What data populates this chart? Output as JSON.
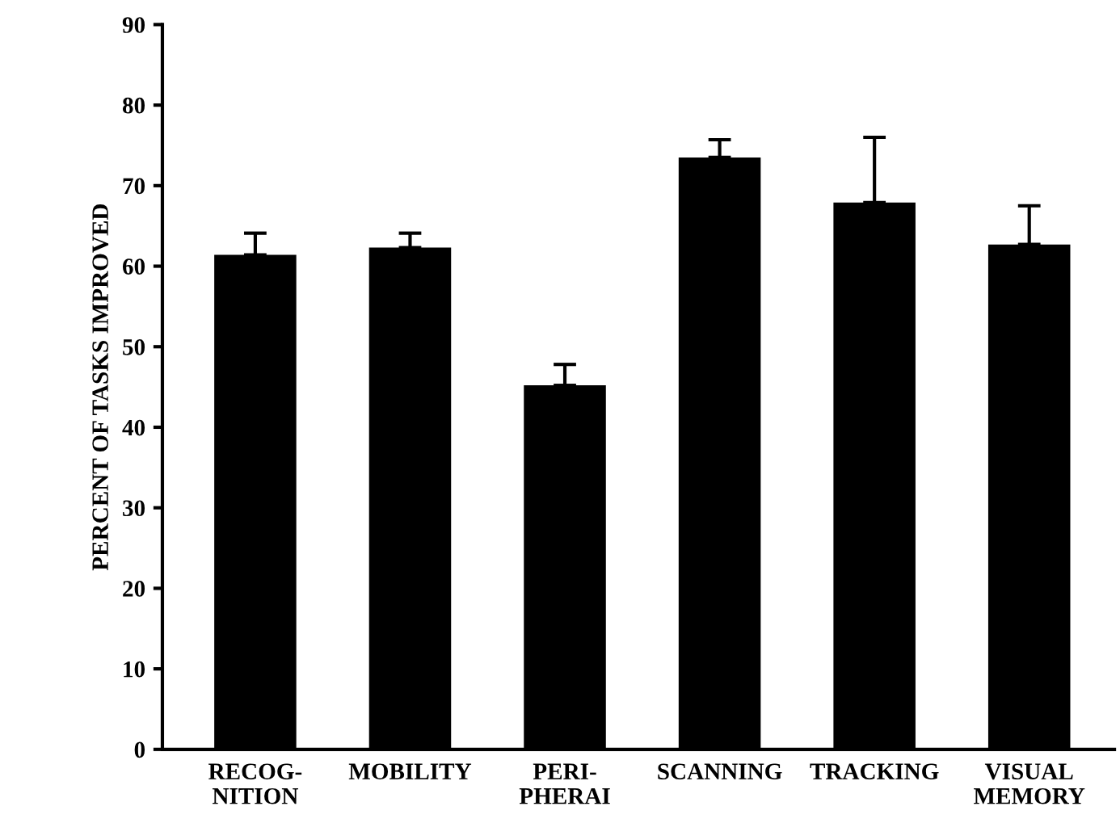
{
  "chart_data": {
    "type": "bar",
    "ylabel": "PERCENT OF TASKS IMPROVED",
    "categories": [
      "RECOG-\nNITION",
      "MOBILITY",
      "PERI-\nPHERAI",
      "SCANNING",
      "TRACKING",
      "VISUAL\nMEMORY"
    ],
    "values": [
      61.4,
      62.3,
      45.2,
      73.5,
      67.9,
      62.7
    ],
    "errors": [
      [
        61.4,
        64.1
      ],
      [
        62.3,
        64.1
      ],
      [
        45.2,
        47.8
      ],
      [
        73.5,
        75.7
      ],
      [
        67.9,
        76.0
      ],
      [
        62.7,
        67.5
      ]
    ],
    "color": "#000000",
    "ylim": [
      0,
      90
    ],
    "yticks": [
      0,
      10,
      20,
      30,
      40,
      50,
      60,
      70,
      80,
      90
    ],
    "grid": false,
    "legend": false
  }
}
